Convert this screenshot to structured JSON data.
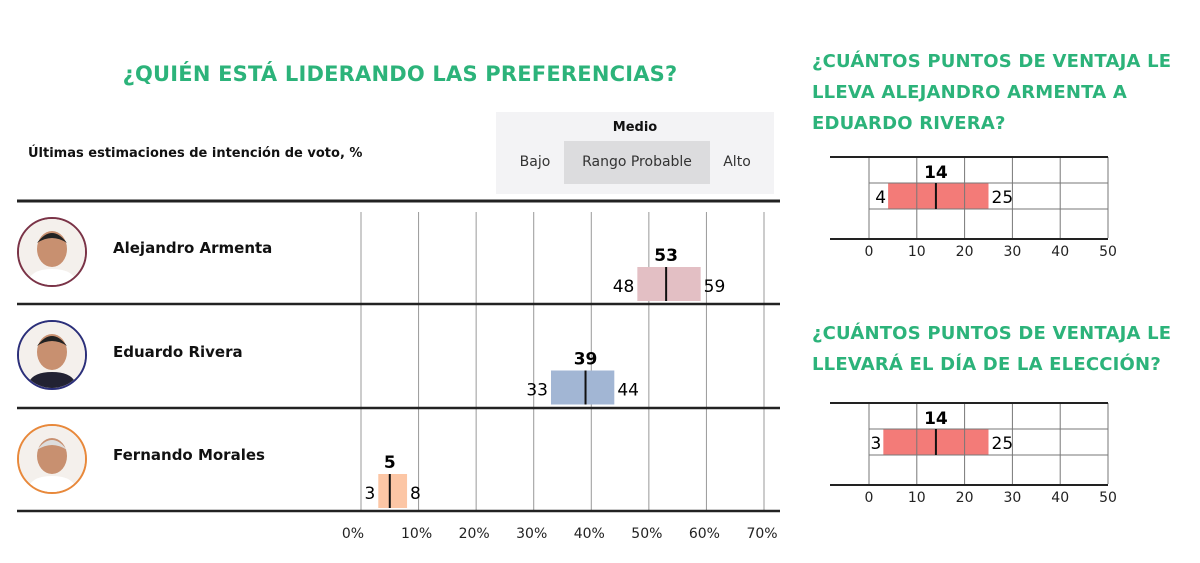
{
  "main": {
    "title": "¿QUIÉN ESTÁ LIDERANDO LAS PREFERENCIAS?",
    "subtitle": "Últimas estimaciones de intención de voto, %",
    "legend": {
      "head": "Medio",
      "low": "Bajo",
      "range": "Rango Probable",
      "high": "Alto"
    }
  },
  "candidates": [
    {
      "name": "Alejandro Armenta",
      "ring_color": "#7a3347"
    },
    {
      "name": "Eduardo Rivera",
      "ring_color": "#2b2f7a"
    },
    {
      "name": "Fernando Morales",
      "ring_color": "#e8883a"
    }
  ],
  "right": {
    "title1": "¿CUÁNTOS PUNTOS DE VENTAJA LE LLEVA ALEJANDRO ARMENTA A EDUARDO RIVERA?",
    "title2": "¿CUÁNTOS PUNTOS DE VENTAJA LE LLEVARÁ EL DÍA DE LA ELECCIÓN?"
  },
  "chart_data": [
    {
      "type": "range-box",
      "xlim": [
        0,
        70
      ],
      "tick_labels": [
        "0%",
        "10%",
        "20%",
        "30%",
        "40%",
        "50%",
        "60%",
        "70%"
      ],
      "ticks": [
        0,
        10,
        20,
        30,
        40,
        50,
        60,
        70
      ],
      "grid": true,
      "categories": [
        "Alejandro Armenta",
        "Eduardo Rivera",
        "Fernando Morales"
      ],
      "low": [
        48,
        33,
        3
      ],
      "mid": [
        53,
        39,
        5
      ],
      "high": [
        59,
        44,
        8
      ],
      "colors": [
        "#e3bfc4",
        "#a2b6d4",
        "#fcc6a5"
      ]
    },
    {
      "type": "range-box",
      "xlim": [
        0,
        50
      ],
      "ticks": [
        0,
        10,
        20,
        30,
        40,
        50
      ],
      "tick_labels": [
        "0",
        "10",
        "20",
        "30",
        "40",
        "50"
      ],
      "grid": true,
      "low": 4,
      "mid": 14,
      "high": 25,
      "color": "#f37b78"
    },
    {
      "type": "range-box",
      "xlim": [
        0,
        50
      ],
      "ticks": [
        0,
        10,
        20,
        30,
        40,
        50
      ],
      "tick_labels": [
        "0",
        "10",
        "20",
        "30",
        "40",
        "50"
      ],
      "grid": true,
      "low": 3,
      "mid": 14,
      "high": 25,
      "color": "#f37b78"
    }
  ]
}
